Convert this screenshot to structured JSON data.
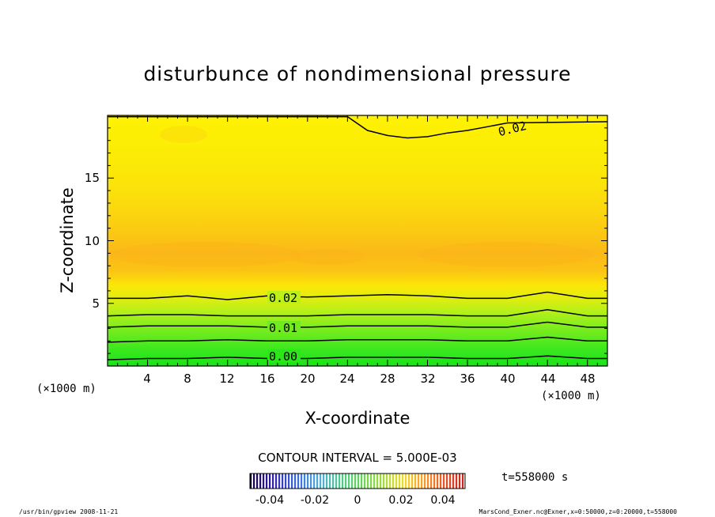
{
  "chart_data": {
    "type": "contour",
    "title": "disturbunce of nondimensional pressure",
    "xlabel": "X-coordinate",
    "ylabel": "Z-coordinate",
    "x_unit": "(×1000 m)",
    "x_unit_right": "(×1000 m)",
    "xlim": [
      0,
      50
    ],
    "ylim": [
      0,
      20
    ],
    "x_ticks": [
      "4",
      "8",
      "12",
      "16",
      "20",
      "24",
      "28",
      "32",
      "36",
      "40",
      "44",
      "48"
    ],
    "y_ticks": [
      "5",
      "10",
      "15"
    ],
    "contour_interval_label": "CONTOUR INTERVAL = 5.000E-03",
    "contour_labels": [
      "0.02",
      "0.01",
      "0.00",
      "0.02"
    ],
    "contours": [
      {
        "level": 0.0,
        "x": [
          0,
          4,
          8,
          12,
          16,
          20,
          24,
          28,
          32,
          36,
          40,
          44,
          48,
          50
        ],
        "z": [
          0.5,
          0.6,
          0.6,
          0.7,
          0.6,
          0.6,
          0.7,
          0.7,
          0.7,
          0.6,
          0.6,
          0.8,
          0.6,
          0.6
        ]
      },
      {
        "level": 0.005,
        "x": [
          0,
          4,
          8,
          12,
          16,
          20,
          24,
          28,
          32,
          36,
          40,
          44,
          48,
          50
        ],
        "z": [
          1.9,
          2.0,
          2.0,
          2.1,
          2.0,
          2.0,
          2.1,
          2.1,
          2.1,
          2.0,
          2.0,
          2.3,
          2.0,
          2.0
        ]
      },
      {
        "level": 0.01,
        "x": [
          0,
          4,
          8,
          12,
          16,
          20,
          24,
          28,
          32,
          36,
          40,
          44,
          48,
          50
        ],
        "z": [
          3.1,
          3.2,
          3.2,
          3.2,
          3.1,
          3.1,
          3.2,
          3.2,
          3.2,
          3.1,
          3.1,
          3.5,
          3.1,
          3.1
        ]
      },
      {
        "level": 0.015,
        "x": [
          0,
          4,
          8,
          12,
          16,
          20,
          24,
          28,
          32,
          36,
          40,
          44,
          48,
          50
        ],
        "z": [
          4.0,
          4.1,
          4.1,
          4.0,
          4.0,
          4.0,
          4.1,
          4.1,
          4.1,
          4.0,
          4.0,
          4.5,
          4.0,
          4.0
        ]
      },
      {
        "level": 0.02,
        "x": [
          0,
          4,
          8,
          12,
          16,
          20,
          24,
          28,
          32,
          36,
          40,
          44,
          48,
          50
        ],
        "z": [
          5.4,
          5.4,
          5.6,
          5.3,
          5.6,
          5.5,
          5.6,
          5.7,
          5.6,
          5.4,
          5.4,
          5.9,
          5.4,
          5.4
        ]
      },
      {
        "level": 0.025,
        "x": [
          0,
          24,
          26,
          28,
          30,
          32,
          34,
          36,
          38,
          40,
          50
        ],
        "z": [
          19.9,
          19.9,
          18.8,
          18.4,
          18.2,
          18.3,
          18.6,
          18.8,
          19.1,
          19.4,
          19.5
        ]
      }
    ],
    "colorbar": {
      "min": -0.05,
      "max": 0.05,
      "tick_labels": [
        "-0.04",
        "-0.02",
        "0",
        "0.02",
        "0.04"
      ]
    },
    "time_label": "t=558000 s"
  },
  "footer": {
    "left": "/usr/bin/gpview   2008-11-21",
    "right": "MarsCond_Exner.nc@Exner,x=0:50000,z=0:20000,t=558000"
  }
}
